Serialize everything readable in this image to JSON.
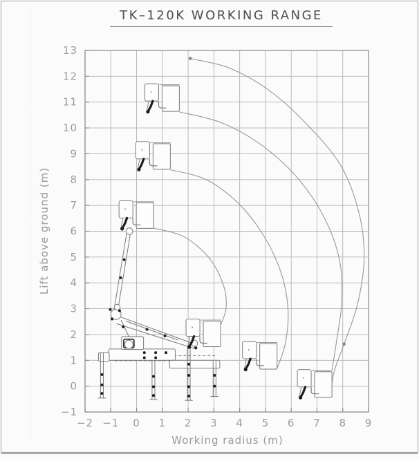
{
  "window": {
    "bg": "#fbfbfb",
    "frame_color": "#c4c4c4",
    "bottom_rule_color": "#8d8d8d",
    "fold_line_color": "#e2e2e2"
  },
  "chart_data": {
    "type": "line",
    "title": "TK–120K WORKING RANGE",
    "xlabel": "Working radius (m)",
    "ylabel": "Lift above ground (m)",
    "xlim": [
      -2,
      9
    ],
    "ylim": [
      -1,
      13
    ],
    "xticks": [
      -2,
      -1,
      0,
      1,
      2,
      3,
      4,
      5,
      6,
      7,
      8,
      9
    ],
    "yticks": [
      -1,
      0,
      1,
      2,
      3,
      4,
      5,
      6,
      7,
      8,
      9,
      10,
      11,
      12,
      13
    ],
    "grid": true,
    "legend": "none",
    "colors": {
      "grid": "#b3b3b3",
      "frame": "#8c8c8c",
      "curve": "#979797",
      "text": "#9c9c9c",
      "title": "#4c4c4c",
      "drawing": "#7a7a7a",
      "dark": "#1c1c1c",
      "paper": "#fdfdfd"
    },
    "series": [
      {
        "name": "envelope-max-reach",
        "points": [
          [
            2.08,
            12.69
          ],
          [
            3.6,
            12.32
          ],
          [
            5.15,
            11.45
          ],
          [
            6.6,
            10.15
          ],
          [
            7.92,
            8.55
          ],
          [
            8.62,
            6.75
          ],
          [
            8.83,
            5.0
          ],
          [
            8.58,
            3.2
          ],
          [
            8.05,
            1.63
          ],
          [
            7.66,
            0.55
          ],
          [
            7.53,
            -0.35
          ]
        ]
      },
      {
        "name": "envelope-upper-mid",
        "points": [
          [
            1.66,
            10.62
          ],
          [
            3.3,
            10.2
          ],
          [
            4.9,
            9.3
          ],
          [
            6.3,
            8.0
          ],
          [
            7.32,
            6.45
          ],
          [
            7.88,
            4.85
          ],
          [
            7.96,
            3.25
          ],
          [
            7.76,
            1.75
          ],
          [
            7.58,
            0.62
          ]
        ]
      },
      {
        "name": "envelope-lower-mid",
        "points": [
          [
            1.32,
            8.38
          ],
          [
            2.7,
            8.0
          ],
          [
            3.95,
            7.08
          ],
          [
            4.95,
            5.8
          ],
          [
            5.62,
            4.35
          ],
          [
            5.88,
            2.9
          ],
          [
            5.77,
            1.65
          ],
          [
            5.46,
            0.7
          ]
        ]
      },
      {
        "name": "envelope-inner",
        "points": [
          [
            0.66,
            6.12
          ],
          [
            1.85,
            5.78
          ],
          [
            2.85,
            4.92
          ],
          [
            3.39,
            3.85
          ],
          [
            3.47,
            3.0
          ],
          [
            3.27,
            2.4
          ]
        ]
      }
    ],
    "markers": [
      [
        2.08,
        12.69
      ],
      [
        8.05,
        1.63
      ]
    ],
    "platforms": [
      {
        "id": "platform-top",
        "x": 1.66,
        "y": 10.64
      },
      {
        "id": "platform-high",
        "x": 1.31,
        "y": 8.4
      },
      {
        "id": "platform-mid",
        "x": 0.66,
        "y": 6.11
      },
      {
        "id": "platform-low-inner",
        "x": 3.26,
        "y": 1.53
      },
      {
        "id": "platform-low",
        "x": 5.45,
        "y": 0.66
      },
      {
        "id": "platform-ground",
        "x": 7.58,
        "y": -0.43
      }
    ],
    "machine": {
      "rects": [
        {
          "x": -1.08,
          "y": 1.44,
          "w": 2.58,
          "h": 0.44
        },
        {
          "x": -1.48,
          "y": 1.3,
          "w": 0.42,
          "h": 0.34
        },
        {
          "x": 1.28,
          "y": 1.0,
          "w": 1.95,
          "h": 0.3
        },
        {
          "x": -0.58,
          "y": 1.92,
          "w": 0.85,
          "h": 0.5
        },
        {
          "x": -0.5,
          "y": 1.82,
          "w": 0.4,
          "h": 0.34,
          "dark": true
        }
      ],
      "lines": [
        [
          -0.88,
          2.92,
          -0.36,
          6.08
        ],
        [
          -0.74,
          2.88,
          -0.22,
          6.04
        ],
        [
          -0.36,
          6.08,
          -0.22,
          6.04
        ],
        [
          -0.84,
          2.76,
          2.28,
          1.62
        ],
        [
          -0.78,
          2.42,
          2.24,
          1.46
        ],
        [
          2.28,
          1.62,
          2.24,
          1.46
        ],
        [
          -0.42,
          2.52,
          1.62,
          1.78
        ],
        [
          -0.3,
          1.92,
          -0.6,
          2.56
        ],
        [
          -1.4,
          1.3,
          -1.4,
          -0.46
        ],
        [
          -1.29,
          1.3,
          -1.29,
          -0.46
        ],
        [
          -1.5,
          -0.46,
          -1.19,
          -0.46
        ],
        [
          0.6,
          1.0,
          0.6,
          -0.52
        ],
        [
          0.71,
          1.0,
          0.71,
          -0.52
        ],
        [
          0.5,
          -0.52,
          0.81,
          -0.52
        ],
        [
          1.97,
          1.5,
          1.97,
          -0.55
        ],
        [
          2.08,
          1.5,
          2.08,
          -0.55
        ],
        [
          1.87,
          -0.55,
          2.18,
          -0.55
        ],
        [
          2.97,
          0.98,
          2.97,
          -0.4
        ],
        [
          3.08,
          0.98,
          3.08,
          -0.4
        ],
        [
          2.87,
          -0.4,
          3.18,
          -0.4
        ]
      ],
      "dashed": [
        [
          -1.0,
          1.18,
          3.05,
          1.18
        ],
        [
          -0.85,
          0.98,
          1.3,
          0.98
        ]
      ],
      "circles": [
        [
          -0.8,
          2.78,
          0.2
        ],
        [
          -0.75,
          3.06,
          0.11
        ],
        [
          -0.28,
          6.0,
          0.13
        ],
        [
          2.25,
          1.66,
          0.12
        ],
        [
          -0.3,
          1.62,
          0.16
        ]
      ],
      "dots": [
        [
          -0.95,
          2.6
        ],
        [
          -0.66,
          2.92
        ],
        [
          -1.02,
          2.97
        ],
        [
          -0.52,
          2.3
        ],
        [
          0.3,
          1.3
        ],
        [
          0.74,
          1.3
        ],
        [
          1.14,
          1.3
        ],
        [
          0.3,
          1.1
        ],
        [
          0.74,
          1.1
        ],
        [
          -1.345,
          0.45
        ],
        [
          -1.345,
          0.05
        ],
        [
          -1.345,
          -0.28
        ],
        [
          0.655,
          0.38
        ],
        [
          0.655,
          -0.02
        ],
        [
          0.655,
          -0.36
        ],
        [
          2.025,
          0.85
        ],
        [
          2.025,
          0.42
        ],
        [
          2.025,
          -0.02
        ],
        [
          2.025,
          -0.38
        ],
        [
          3.025,
          0.42
        ],
        [
          3.025,
          0.0
        ],
        [
          2.3,
          1.48
        ],
        [
          -0.62,
          4.2
        ],
        [
          -0.48,
          4.9
        ],
        [
          0.4,
          2.2
        ],
        [
          1.1,
          1.95
        ]
      ]
    }
  }
}
